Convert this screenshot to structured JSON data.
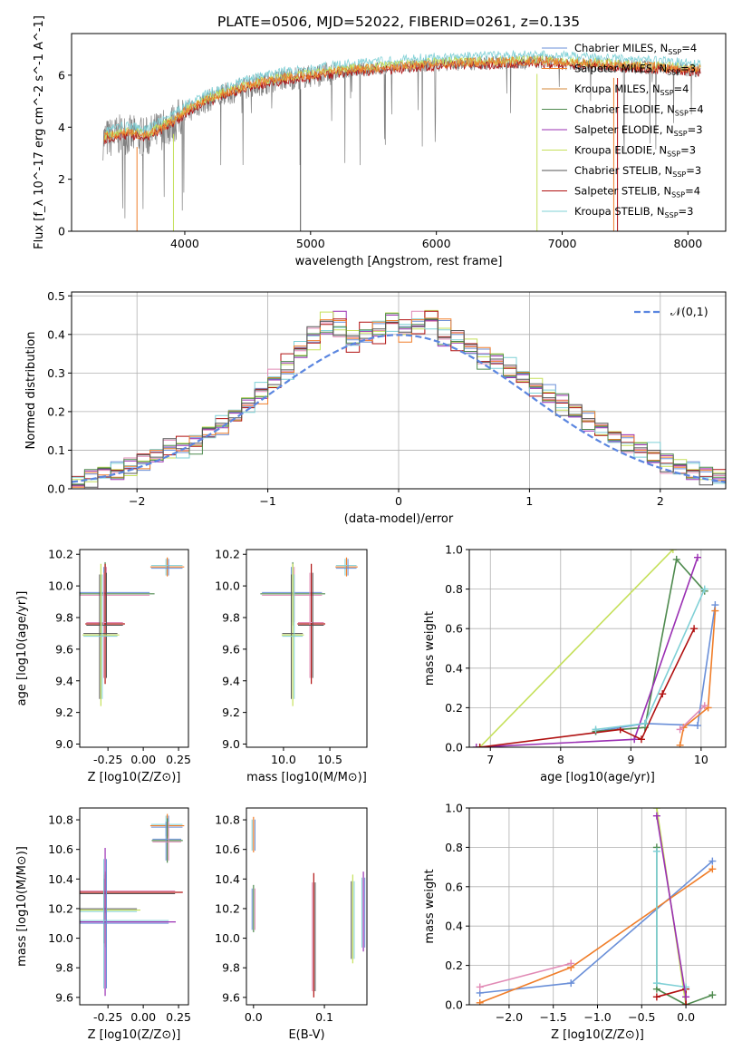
{
  "figure_title": "PLATE=0506, MJD=52022, FIBERID=0261, z=0.135",
  "colors": {
    "chabrier_miles": "#6a8fd8",
    "salpeter_miles": "#f07e2a",
    "kroupa_miles": "#d58a3a",
    "chabrier_elodie": "#4e8a4e",
    "salpeter_elodie": "#9a2fb3",
    "kroupa_elodie": "#c5e05a",
    "chabrier_stelib": "#555555",
    "salpeter_stelib": "#b01010",
    "kroupa_stelib": "#7fd0d6",
    "data": "#808080",
    "pink": "#e18ab5",
    "normal": "#5b86e0"
  },
  "chart_data": [
    {
      "id": "spectrum",
      "type": "line",
      "title": "PLATE=0506, MJD=52022, FIBERID=0261, z=0.135",
      "xlabel": "wavelength [Angstrom, rest frame]",
      "ylabel": "Flux [f_λ 10^-17 erg cm^-2 s^-1 A^-1]",
      "xlim": [
        3100,
        8300
      ],
      "ylim": [
        0,
        7.6
      ],
      "xticks": [
        4000,
        5000,
        6000,
        7000,
        8000
      ],
      "yticks": [
        0,
        2,
        4,
        6
      ],
      "legend_position": "top-right",
      "legend": [
        "Chabrier MILES, N_SSP=4",
        "Salpeter MILES, N_SSP=3",
        "Kroupa MILES, N_SSP=4",
        "Chabrier ELODIE, N_SSP=4",
        "Salpeter ELODIE, N_SSP=3",
        "Kroupa ELODIE, N_SSP=3",
        "Chabrier STELIB, N_SSP=3",
        "Salpeter STELIB, N_SSP=4",
        "Kroupa STELIB, N_SSP=3"
      ],
      "continuum_x": [
        3350,
        3500,
        3700,
        3900,
        4000,
        4200,
        4500,
        4800,
        5000,
        5300,
        5600,
        6000,
        6400,
        6800,
        7200,
        7600,
        8000,
        8100
      ],
      "continuum_y": [
        3.6,
        3.8,
        3.7,
        4.2,
        4.6,
        5.1,
        5.6,
        5.9,
        6.0,
        6.2,
        6.3,
        6.45,
        6.5,
        6.55,
        6.45,
        6.35,
        6.25,
        6.2
      ]
    },
    {
      "id": "residuals",
      "type": "line",
      "xlabel": "(data-model)/error",
      "ylabel": "Normed distribution",
      "xlim": [
        -2.5,
        2.5
      ],
      "ylim": [
        0,
        0.51
      ],
      "xticks": [
        -2,
        -1,
        0,
        1,
        2
      ],
      "yticks": [
        0.0,
        0.1,
        0.2,
        0.3,
        0.4,
        0.5
      ],
      "grid": true,
      "legend": [
        "𝒩(0,1)"
      ],
      "legend_position": "top-right",
      "bin_width": 0.1,
      "bin_start": -2.5,
      "series": [
        {
          "values": [
            0.02,
            0.03,
            0.04,
            0.05,
            0.05,
            0.06,
            0.08,
            0.1,
            0.11,
            0.12,
            0.14,
            0.16,
            0.19,
            0.22,
            0.24,
            0.28,
            0.31,
            0.35,
            0.38,
            0.45,
            0.42,
            0.39,
            0.4,
            0.42,
            0.44,
            0.4,
            0.43,
            0.45,
            0.42,
            0.4,
            0.38,
            0.35,
            0.33,
            0.31,
            0.29,
            0.27,
            0.25,
            0.22,
            0.2,
            0.18,
            0.16,
            0.14,
            0.12,
            0.1,
            0.09,
            0.07,
            0.06,
            0.05,
            0.04,
            0.03
          ]
        },
        {
          "values": [
            0.02,
            0.03,
            0.05,
            0.04,
            0.06,
            0.07,
            0.09,
            0.1,
            0.12,
            0.11,
            0.15,
            0.17,
            0.18,
            0.23,
            0.25,
            0.27,
            0.33,
            0.36,
            0.39,
            0.41,
            0.44,
            0.37,
            0.42,
            0.38,
            0.45,
            0.43,
            0.41,
            0.44,
            0.39,
            0.37,
            0.36,
            0.33,
            0.34,
            0.3,
            0.28,
            0.26,
            0.24,
            0.23,
            0.19,
            0.17,
            0.15,
            0.13,
            0.12,
            0.11,
            0.08,
            0.07,
            0.06,
            0.04,
            0.04,
            0.03
          ]
        },
        {
          "values": [
            0.01,
            0.02,
            0.04,
            0.05,
            0.06,
            0.08,
            0.09,
            0.11,
            0.1,
            0.13,
            0.14,
            0.17,
            0.2,
            0.21,
            0.26,
            0.29,
            0.3,
            0.37,
            0.4,
            0.43,
            0.41,
            0.38,
            0.39,
            0.43,
            0.42,
            0.41,
            0.44,
            0.43,
            0.4,
            0.39,
            0.37,
            0.34,
            0.32,
            0.32,
            0.3,
            0.26,
            0.24,
            0.21,
            0.21,
            0.19,
            0.15,
            0.14,
            0.11,
            0.09,
            0.1,
            0.06,
            0.05,
            0.05,
            0.03,
            0.03
          ]
        }
      ],
      "normal_curve": {
        "mean": 0,
        "sigma": 1
      }
    },
    {
      "id": "age-vs-Z",
      "type": "scatter",
      "xlabel": "Z [log10(Z/Z⊙)]",
      "ylabel": "age [log10(age/yr)]",
      "xlim": [
        -0.45,
        0.32
      ],
      "ylim": [
        8.98,
        10.23
      ],
      "xticks": [
        -0.25,
        0.0,
        0.25
      ],
      "yticks": [
        9.0,
        9.2,
        9.4,
        9.6,
        9.8,
        10.0,
        10.2
      ],
      "points": [
        {
          "x": 0.17,
          "y": 10.12,
          "xerr": 0.12,
          "yerr": 0.06
        },
        {
          "x": -0.27,
          "y": 9.95,
          "xerr": 0.35,
          "yerr": 0.2
        },
        {
          "x": -0.27,
          "y": 9.76,
          "xerr": 0.14,
          "yerr": 0.38
        },
        {
          "x": -0.3,
          "y": 9.69,
          "xerr": 0.13,
          "yerr": 0.45
        }
      ]
    },
    {
      "id": "age-vs-mass",
      "type": "scatter",
      "xlabel": "mass [log10(M/M⊙)]",
      "ylabel": "",
      "xlim": [
        9.6,
        10.9
      ],
      "ylim": [
        8.98,
        10.23
      ],
      "xticks": [
        10.0,
        10.5
      ],
      "yticks": [
        9.0,
        9.2,
        9.4,
        9.6,
        9.8,
        10.0,
        10.2
      ],
      "points": [
        {
          "x": 10.68,
          "y": 10.12,
          "xerr": 0.12,
          "yerr": 0.06
        },
        {
          "x": 10.1,
          "y": 9.95,
          "xerr": 0.35,
          "yerr": 0.2
        },
        {
          "x": 10.3,
          "y": 9.76,
          "xerr": 0.15,
          "yerr": 0.38
        },
        {
          "x": 10.1,
          "y": 9.69,
          "xerr": 0.12,
          "yerr": 0.45
        }
      ]
    },
    {
      "id": "massweight-vs-age",
      "type": "line",
      "xlabel": "age [log10(age/yr)]",
      "ylabel": "mass weight",
      "xlim": [
        6.7,
        10.35
      ],
      "ylim": [
        0,
        1.0
      ],
      "xticks": [
        7,
        8,
        9,
        10
      ],
      "yticks": [
        0.0,
        0.2,
        0.4,
        0.6,
        0.8,
        1.0
      ],
      "grid": true,
      "series": [
        {
          "color_key": "chabrier_miles",
          "x": [
            8.5,
            9.2,
            9.95,
            10.2
          ],
          "y": [
            0.08,
            0.12,
            0.11,
            0.72
          ]
        },
        {
          "color_key": "salpeter_miles",
          "x": [
            9.7,
            9.75,
            10.1,
            10.2
          ],
          "y": [
            0.01,
            0.1,
            0.2,
            0.69
          ]
        },
        {
          "color_key": "chabrier_elodie",
          "x": [
            8.5,
            9.2,
            9.65,
            10.05
          ],
          "y": [
            0.08,
            0.1,
            0.95,
            0.79
          ]
        },
        {
          "color_key": "salpeter_elodie",
          "x": [
            6.8,
            9.05,
            9.95
          ],
          "y": [
            0.0,
            0.04,
            0.96
          ]
        },
        {
          "color_key": "kroupa_elodie",
          "x": [
            6.85,
            9.6
          ],
          "y": [
            0.0,
            1.0
          ]
        },
        {
          "color_key": "salpeter_stelib",
          "x": [
            6.85,
            8.85,
            9.15,
            9.45,
            9.9
          ],
          "y": [
            0.0,
            0.09,
            0.04,
            0.27,
            0.6
          ]
        },
        {
          "color_key": "kroupa_stelib",
          "x": [
            8.5,
            9.2,
            10.05
          ],
          "y": [
            0.09,
            0.12,
            0.8
          ]
        },
        {
          "color_key": "pink",
          "x": [
            9.7,
            10.05
          ],
          "y": [
            0.09,
            0.21
          ]
        }
      ]
    },
    {
      "id": "mass-vs-Z",
      "type": "scatter",
      "xlabel": "Z [log10(Z/Z⊙)]",
      "ylabel": "mass [log10(M/M⊙)]",
      "xlim": [
        -0.45,
        0.32
      ],
      "ylim": [
        9.55,
        10.88
      ],
      "xticks": [
        -0.25,
        0.0,
        0.25
      ],
      "yticks": [
        9.6,
        9.8,
        10.0,
        10.2,
        10.4,
        10.6,
        10.8
      ],
      "points": [
        {
          "x": 0.17,
          "y": 10.76,
          "xerr": 0.12,
          "yerr": 0.08
        },
        {
          "x": 0.17,
          "y": 10.66,
          "xerr": 0.11,
          "yerr": 0.15
        },
        {
          "x": -0.27,
          "y": 10.31,
          "xerr": 0.55,
          "yerr": 0.14
        },
        {
          "x": -0.27,
          "y": 10.19,
          "xerr": 0.25,
          "yerr": 0.25
        },
        {
          "x": -0.27,
          "y": 10.11,
          "xerr": 0.5,
          "yerr": 0.5
        }
      ]
    },
    {
      "id": "mass-vs-EBV",
      "type": "scatter",
      "xlabel": "E(B-V)",
      "ylabel": "",
      "xlim": [
        -0.01,
        0.16
      ],
      "ylim": [
        9.55,
        10.88
      ],
      "xticks": [
        0.0,
        0.1
      ],
      "yticks": [
        9.6,
        9.8,
        10.0,
        10.2,
        10.4,
        10.6,
        10.8
      ],
      "points": [
        {
          "x": 0.0,
          "y": 10.7,
          "yerr": 0.12
        },
        {
          "x": 0.0,
          "y": 10.2,
          "yerr": 0.16
        },
        {
          "x": 0.085,
          "y": 10.02,
          "yerr": 0.42
        },
        {
          "x": 0.14,
          "y": 10.13,
          "yerr": 0.3
        },
        {
          "x": 0.155,
          "y": 10.18,
          "yerr": 0.27
        }
      ]
    },
    {
      "id": "massweight-vs-Z",
      "type": "line",
      "xlabel": "Z [log10(Z/Z⊙)]",
      "ylabel": "mass weight",
      "xlim": [
        -2.45,
        0.45
      ],
      "ylim": [
        0,
        1.0
      ],
      "xticks": [
        -2.0,
        -1.5,
        -1.0,
        -0.5,
        0.0
      ],
      "yticks": [
        0.0,
        0.2,
        0.4,
        0.6,
        0.8,
        1.0
      ],
      "grid": true,
      "series": [
        {
          "color_key": "chabrier_miles",
          "x": [
            -2.33,
            -1.3,
            0.3
          ],
          "y": [
            0.06,
            0.11,
            0.73
          ]
        },
        {
          "color_key": "salpeter_miles",
          "x": [
            -2.33,
            -1.3,
            0.3
          ],
          "y": [
            0.01,
            0.19,
            0.69
          ]
        },
        {
          "color_key": "pink",
          "x": [
            -2.33,
            -1.3
          ],
          "y": [
            0.09,
            0.21
          ]
        },
        {
          "color_key": "chabrier_elodie",
          "x": [
            -0.33,
            -0.33,
            0.0,
            0.3
          ],
          "y": [
            0.8,
            0.08,
            0.0,
            0.05
          ]
        },
        {
          "color_key": "kroupa_elodie",
          "x": [
            -0.33,
            0.0
          ],
          "y": [
            1.0,
            0.0
          ]
        },
        {
          "color_key": "salpeter_stelib",
          "x": [
            -0.33,
            0.0,
            0.0
          ],
          "y": [
            0.04,
            0.08,
            0.0
          ]
        },
        {
          "color_key": "kroupa_stelib",
          "x": [
            -0.33,
            -0.33,
            0.0
          ],
          "y": [
            0.78,
            0.11,
            0.09
          ]
        },
        {
          "color_key": "salpeter_elodie",
          "x": [
            -0.33,
            0.0
          ],
          "y": [
            0.96,
            0.04
          ]
        }
      ]
    }
  ]
}
